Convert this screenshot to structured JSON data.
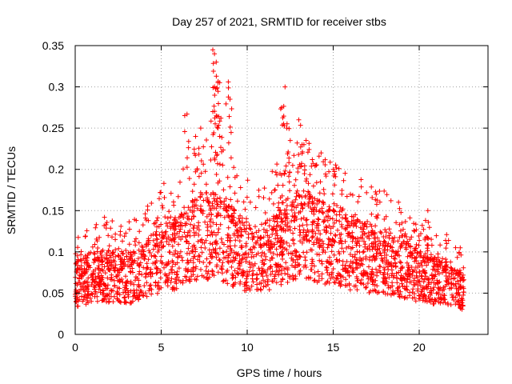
{
  "chart_data": {
    "type": "scatter",
    "title": "Day 257 of 2021, SRMTID for receiver stbs",
    "xlabel": "GPS time / hours",
    "ylabel": "SRMTID / TECUs",
    "xlim": [
      0,
      24
    ],
    "ylim": [
      0,
      0.35
    ],
    "xticks": [
      0,
      5,
      10,
      15,
      20
    ],
    "xtick_labels": [
      "0",
      "5",
      "10",
      "15",
      "20"
    ],
    "yticks": [
      0,
      0.05,
      0.1,
      0.15,
      0.2,
      0.25,
      0.3,
      0.35
    ],
    "ytick_labels": [
      "0",
      "0.05",
      "0.1",
      "0.15",
      "0.2",
      "0.25",
      "0.3",
      "0.35"
    ],
    "grid": true,
    "marker": "plus",
    "marker_color": "#ff0000",
    "series": [
      {
        "name": "stbs",
        "approx_data_range_hours": [
          0,
          22.6
        ],
        "baseline_points": [
          [
            0.0,
            0.06
          ],
          [
            0.5,
            0.065
          ],
          [
            1.0,
            0.07
          ],
          [
            1.5,
            0.072
          ],
          [
            2.0,
            0.07
          ],
          [
            2.5,
            0.068
          ],
          [
            3.0,
            0.068
          ],
          [
            3.5,
            0.07
          ],
          [
            4.0,
            0.075
          ],
          [
            4.5,
            0.085
          ],
          [
            5.0,
            0.09
          ],
          [
            5.5,
            0.095
          ],
          [
            6.0,
            0.1
          ],
          [
            6.5,
            0.11
          ],
          [
            7.0,
            0.115
          ],
          [
            7.5,
            0.12
          ],
          [
            8.0,
            0.12
          ],
          [
            8.5,
            0.115
          ],
          [
            9.0,
            0.11
          ],
          [
            9.5,
            0.1
          ],
          [
            10.0,
            0.095
          ],
          [
            10.5,
            0.09
          ],
          [
            11.0,
            0.095
          ],
          [
            11.5,
            0.1
          ],
          [
            12.0,
            0.11
          ],
          [
            12.5,
            0.115
          ],
          [
            13.0,
            0.12
          ],
          [
            13.5,
            0.12
          ],
          [
            14.0,
            0.115
          ],
          [
            14.5,
            0.11
          ],
          [
            15.0,
            0.105
          ],
          [
            15.5,
            0.1
          ],
          [
            16.0,
            0.098
          ],
          [
            16.5,
            0.095
          ],
          [
            17.0,
            0.092
          ],
          [
            17.5,
            0.09
          ],
          [
            18.0,
            0.088
          ],
          [
            18.5,
            0.085
          ],
          [
            19.0,
            0.08
          ],
          [
            19.5,
            0.075
          ],
          [
            20.0,
            0.07
          ],
          [
            20.5,
            0.068
          ],
          [
            21.0,
            0.065
          ],
          [
            21.5,
            0.063
          ],
          [
            22.0,
            0.06
          ],
          [
            22.6,
            0.05
          ]
        ],
        "peak_points": [
          [
            6.5,
            0.267
          ],
          [
            7.0,
            0.24
          ],
          [
            7.3,
            0.25
          ],
          [
            8.0,
            0.345
          ],
          [
            8.1,
            0.34
          ],
          [
            8.2,
            0.33
          ],
          [
            8.3,
            0.305
          ],
          [
            8.4,
            0.305
          ],
          [
            8.9,
            0.306
          ],
          [
            9.0,
            0.285
          ],
          [
            8.2,
            0.265
          ],
          [
            8.3,
            0.25
          ],
          [
            8.0,
            0.27
          ],
          [
            8.4,
            0.24
          ],
          [
            12.2,
            0.3
          ],
          [
            12.0,
            0.275
          ],
          [
            12.3,
            0.25
          ],
          [
            13.0,
            0.26
          ],
          [
            12.5,
            0.235
          ],
          [
            13.3,
            0.23
          ],
          [
            14.0,
            0.205
          ],
          [
            14.3,
            0.22
          ],
          [
            15.0,
            0.2
          ],
          [
            15.5,
            0.17
          ],
          [
            16.0,
            0.17
          ],
          [
            17.5,
            0.17
          ],
          [
            20.5,
            0.15
          ],
          [
            19.0,
            0.135
          ]
        ]
      }
    ]
  }
}
